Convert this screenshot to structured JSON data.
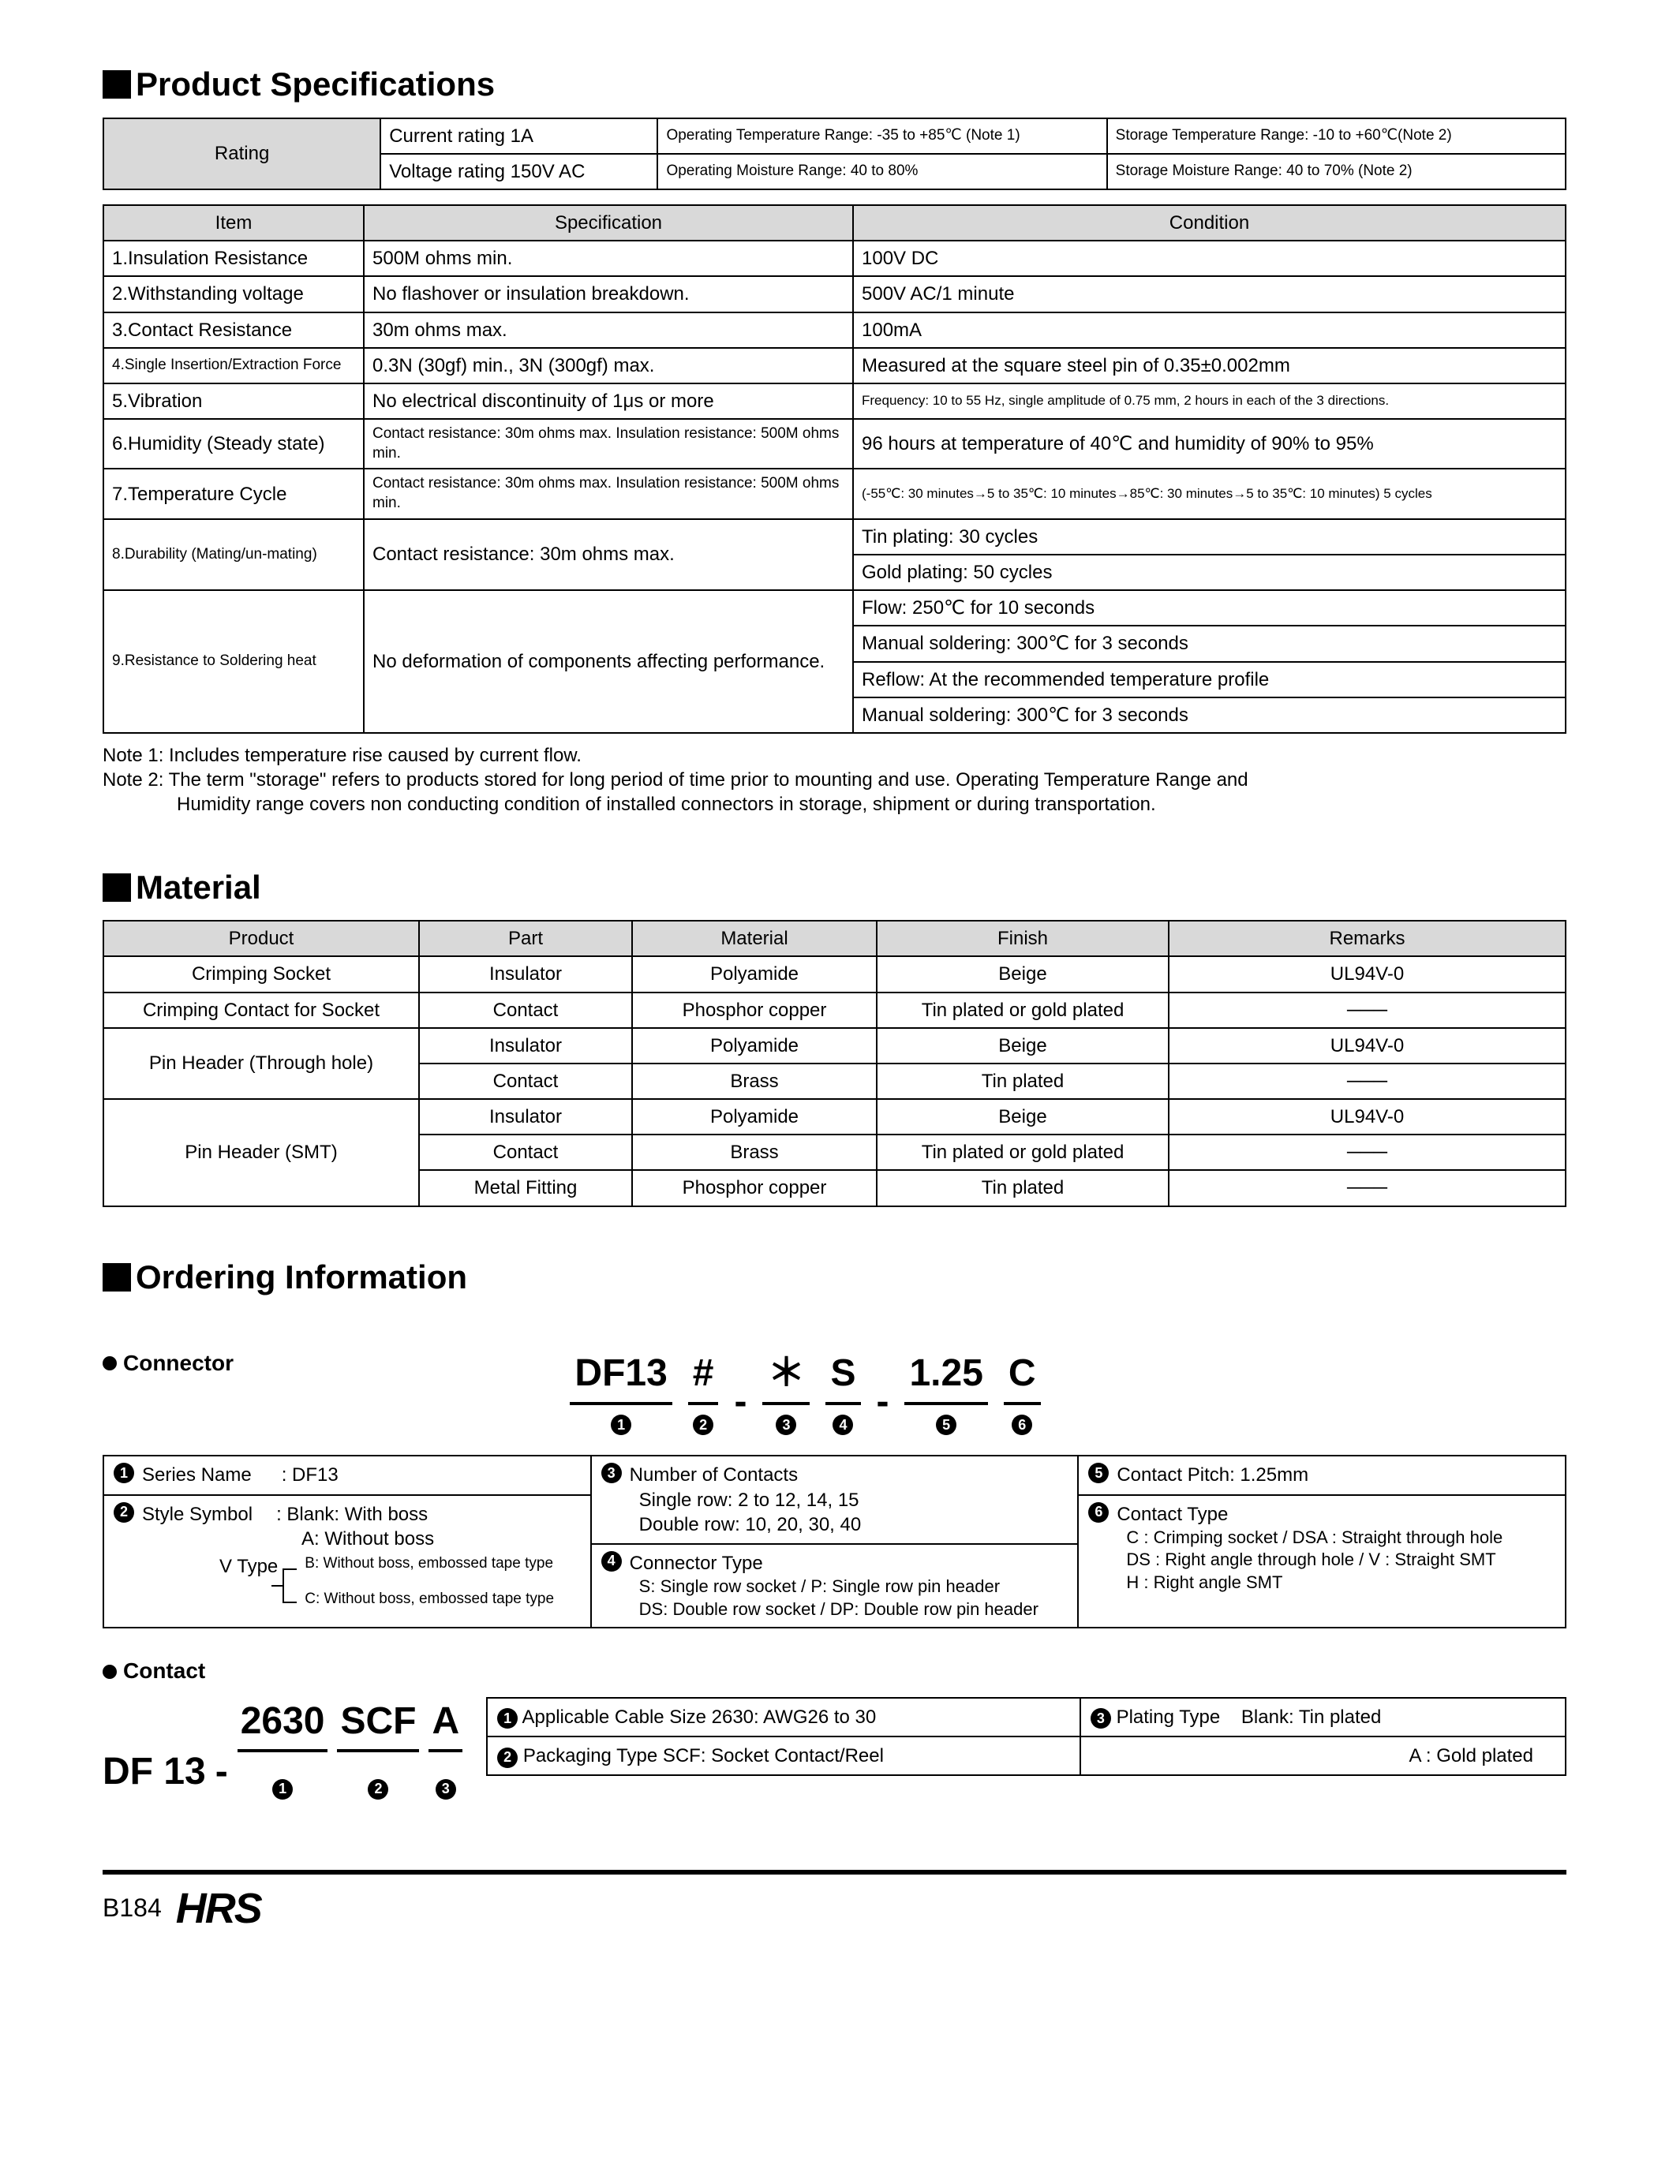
{
  "sections": {
    "spec_title": "Product Specifications",
    "material_title": "Material",
    "ordering_title": "Ordering Information"
  },
  "rating_table": {
    "rating_label": "Rating",
    "row1_c1": "Current rating  1A",
    "row1_c2": "Operating Temperature Range: -35 to +85℃ (Note 1)",
    "row1_c3": "Storage Temperature Range: -10 to +60℃(Note 2)",
    "row2_c1": "Voltage rating  150V AC",
    "row2_c2": "Operating Moisture Range: 40 to 80%",
    "row2_c3": "Storage Moisture Range: 40 to 70%        (Note 2)"
  },
  "spec_table": {
    "headers": {
      "item": "Item",
      "spec": "Specification",
      "cond": "Condition"
    },
    "rows": [
      {
        "item": "1.Insulation Resistance",
        "spec": "500M ohms min.",
        "cond": "100V DC"
      },
      {
        "item": "2.Withstanding voltage",
        "spec": "No flashover or insulation breakdown.",
        "cond": "500V AC/1 minute"
      },
      {
        "item": "3.Contact Resistance",
        "spec": "30m ohms max.",
        "cond": "100mA"
      },
      {
        "item": "4.Single Insertion/Extraction Force",
        "spec": "0.3N (30gf) min., 3N (300gf) max.",
        "cond": "Measured at the square steel pin of 0.35±0.002mm",
        "item_small": true
      },
      {
        "item": "5.Vibration",
        "spec": "No electrical discontinuity of 1μs or more",
        "cond": "Frequency: 10 to 55 Hz, single amplitude of 0.75 mm, 2 hours in each of the 3 directions.",
        "cond_small": true
      },
      {
        "item": "6.Humidity (Steady state)",
        "spec": "Contact resistance: 30m ohms max. Insulation resistance: 500M ohms min.",
        "cond": "96 hours at temperature of 40℃ and humidity of 90% to 95%",
        "spec_small": true
      },
      {
        "item": "7.Temperature Cycle",
        "spec": "Contact resistance: 30m ohms max. Insulation resistance: 500M ohms min.",
        "cond": "(-55℃: 30 minutes→5 to 35℃: 10 minutes→85℃: 30 minutes→5 to 35℃: 10 minutes) 5 cycles",
        "spec_small": true,
        "cond_small": true
      }
    ],
    "row8": {
      "item": "8.Durability (Mating/un-mating)",
      "spec": "Contact resistance: 30m ohms max.",
      "cond1": "Tin plating: 30 cycles",
      "cond2": "Gold plating: 50 cycles"
    },
    "row9": {
      "item": "9.Resistance to Soldering heat",
      "spec": "No deformation of components affecting performance.",
      "cond1": "Flow: 250℃ for 10 seconds",
      "cond2": "Manual soldering: 300℃ for 3 seconds",
      "cond3": "Reflow: At the recommended temperature profile",
      "cond4": "Manual soldering: 300℃ for 3 seconds"
    }
  },
  "notes": {
    "n1": "Note 1: Includes temperature rise caused by current flow.",
    "n2a": "Note 2: The term \"storage\" refers to products stored for long period of time prior to mounting and use. Operating Temperature Range and",
    "n2b": "Humidity range covers non conducting condition of installed connectors in storage, shipment or during transportation."
  },
  "material_table": {
    "headers": {
      "product": "Product",
      "part": "Part",
      "material": "Material",
      "finish": "Finish",
      "remarks": "Remarks"
    },
    "rows": [
      {
        "product": "Crimping Socket",
        "part": "Insulator",
        "material": "Polyamide",
        "finish": "Beige",
        "remarks": "UL94V-0",
        "rowspan": 1
      },
      {
        "product": "Crimping Contact for Socket",
        "part": "Contact",
        "material": "Phosphor copper",
        "finish": "Tin plated or gold plated",
        "remarks": "───",
        "rowspan": 1
      },
      {
        "product": "Pin Header (Through hole)",
        "part": "Insulator",
        "material": "Polyamide",
        "finish": "Beige",
        "remarks": "UL94V-0",
        "rowspan": 2
      },
      {
        "part": "Contact",
        "material": "Brass",
        "finish": "Tin plated",
        "remarks": "───"
      },
      {
        "product": "Pin Header (SMT)",
        "part": "Insulator",
        "material": "Polyamide",
        "finish": "Beige",
        "remarks": "UL94V-0",
        "rowspan": 3
      },
      {
        "part": "Contact",
        "material": "Brass",
        "finish": "Tin plated or gold plated",
        "remarks": "───"
      },
      {
        "part": "Metal Fitting",
        "material": "Phosphor copper",
        "finish": "Tin plated",
        "remarks": "───"
      }
    ]
  },
  "ordering": {
    "connector_label": "Connector",
    "contact_label": "Contact",
    "pn_conn": {
      "p1": "DF13",
      "p2": "#",
      "p3": "＊",
      "p4": "S",
      "p5": "1.25",
      "p6": "C"
    },
    "pn_contact": {
      "pre": "DF 13",
      "p1": "2630",
      "p2": "SCF",
      "p3": "A"
    },
    "col1": {
      "r1_lbl": "Series Name",
      "r1_val": ": DF13",
      "r2_lbl": "Style Symbol",
      "r2_val": ": Blank: With boss",
      "r2_a": "A: Without boss",
      "vtype": "V Type",
      "vtype_b": "B: Without boss, embossed tape type",
      "vtype_c": "C: Without boss, embossed tape type"
    },
    "col2": {
      "r3_lbl": "Number of Contacts",
      "r3_a": "Single row: 2 to 12, 14, 15",
      "r3_b": "Double row: 10, 20, 30, 40",
      "r4_lbl": "Connector Type",
      "r4_a": "S: Single row socket / P: Single row pin header",
      "r4_b": "DS: Double row socket / DP: Double row pin header"
    },
    "col3": {
      "r5_lbl": "Contact Pitch: 1.25mm",
      "r6_lbl": "Contact Type",
      "r6_a": "C : Crimping socket / DSA : Straight through hole",
      "r6_b": "DS : Right angle through hole / V : Straight SMT",
      "r6_c": "H : Right angle SMT"
    },
    "contact_tbl": {
      "c1": "Applicable Cable Size  2630: AWG26 to 30",
      "c2": "Packaging Type  SCF: Socket Contact/Reel",
      "c3a": "Plating Type",
      "c3b": "Blank: Tin plated",
      "c3c": "A   : Gold plated"
    }
  },
  "footer": {
    "page": "B184",
    "logo": "HRS"
  },
  "colors": {
    "header_bg": "#d9d9d9",
    "border": "#000000",
    "text": "#000000",
    "bg": "#ffffff"
  }
}
